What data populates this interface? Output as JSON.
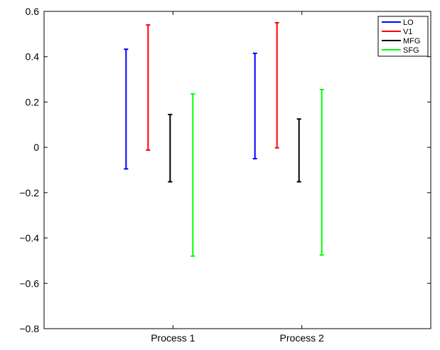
{
  "chart_data": {
    "type": "errorbar",
    "title": "",
    "xlabel": "",
    "ylabel": "",
    "categories": [
      "Process 1",
      "Process 2"
    ],
    "ylim": [
      -0.8,
      0.6
    ],
    "yticks": [
      -0.8,
      -0.6,
      -0.4,
      -0.2,
      0,
      0.2,
      0.4,
      0.6
    ],
    "ytick_labels": [
      "−0.8",
      "−0.6",
      "−0.4",
      "−0.2",
      "0",
      "0.2",
      "0.4",
      "0.6"
    ],
    "grid": false,
    "legend_position": "top-right",
    "series": [
      {
        "name": "LO",
        "color": "#0000ff",
        "ranges": [
          [
            -0.095,
            0.433
          ],
          [
            -0.05,
            0.415
          ]
        ]
      },
      {
        "name": "V1",
        "color": "#ff0000",
        "ranges": [
          [
            -0.012,
            0.54
          ],
          [
            -0.002,
            0.55
          ]
        ]
      },
      {
        "name": "MFG",
        "color": "#000000",
        "ranges": [
          [
            -0.152,
            0.145
          ],
          [
            -0.152,
            0.125
          ]
        ]
      },
      {
        "name": "SFG",
        "color": "#00ff00",
        "ranges": [
          [
            -0.48,
            0.236
          ],
          [
            -0.475,
            0.255
          ]
        ]
      }
    ]
  }
}
